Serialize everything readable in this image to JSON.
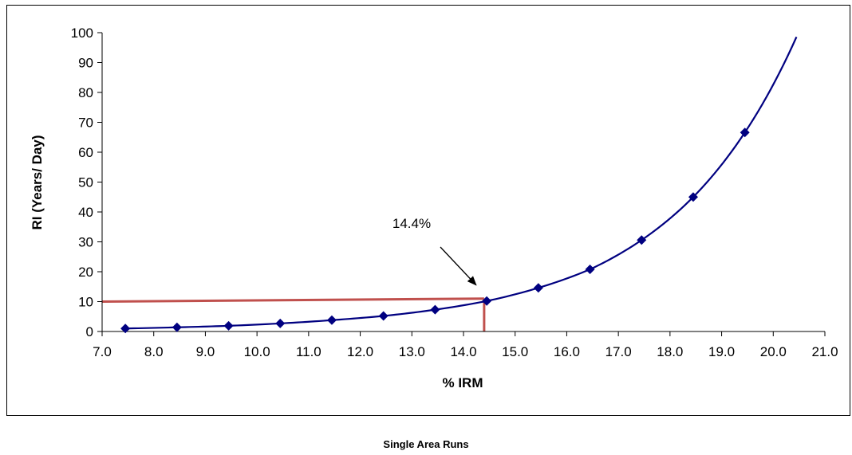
{
  "chart_data": {
    "type": "scatter",
    "title": "",
    "xlabel": "% IRM",
    "ylabel": "RI (Years/ Day)",
    "xlim": [
      7.0,
      21.0
    ],
    "ylim": [
      0,
      100
    ],
    "x_ticks": [
      "7.0",
      "8.0",
      "9.0",
      "10.0",
      "11.0",
      "12.0",
      "13.0",
      "14.0",
      "15.0",
      "16.0",
      "17.0",
      "18.0",
      "19.0",
      "20.0",
      "21.0"
    ],
    "y_ticks": [
      "0",
      "10",
      "20",
      "30",
      "40",
      "50",
      "60",
      "70",
      "80",
      "90",
      "100"
    ],
    "grid": false,
    "legend": "none",
    "series": [
      {
        "marker": "diamond",
        "color": "#000080",
        "points": [
          {
            "x": 7.45,
            "y": 1.0
          },
          {
            "x": 8.45,
            "y": 1.4
          },
          {
            "x": 9.45,
            "y": 1.9
          },
          {
            "x": 10.45,
            "y": 2.7
          },
          {
            "x": 11.45,
            "y": 3.8
          },
          {
            "x": 12.45,
            "y": 5.2
          },
          {
            "x": 13.45,
            "y": 7.3
          },
          {
            "x": 14.45,
            "y": 10.2
          },
          {
            "x": 15.45,
            "y": 14.6
          },
          {
            "x": 16.45,
            "y": 20.8
          },
          {
            "x": 17.45,
            "y": 30.6
          },
          {
            "x": 18.45,
            "y": 45.0
          },
          {
            "x": 19.45,
            "y": 66.6
          }
        ],
        "trendline_extends_to_x": 20.45
      }
    ],
    "reference_lines": [
      {
        "color": "#c0504d",
        "from": {
          "x": 7.0,
          "y": 10.0
        },
        "to": {
          "x": 14.4,
          "y": 11.0
        }
      },
      {
        "color": "#c0504d",
        "from": {
          "x": 14.4,
          "y": 11.0
        },
        "to": {
          "x": 14.4,
          "y": 0
        }
      }
    ],
    "annotations": [
      {
        "text": "14.4%",
        "points_to": {
          "x": 14.4,
          "y": 11.0
        }
      }
    ]
  },
  "caption": "Single Area Runs"
}
